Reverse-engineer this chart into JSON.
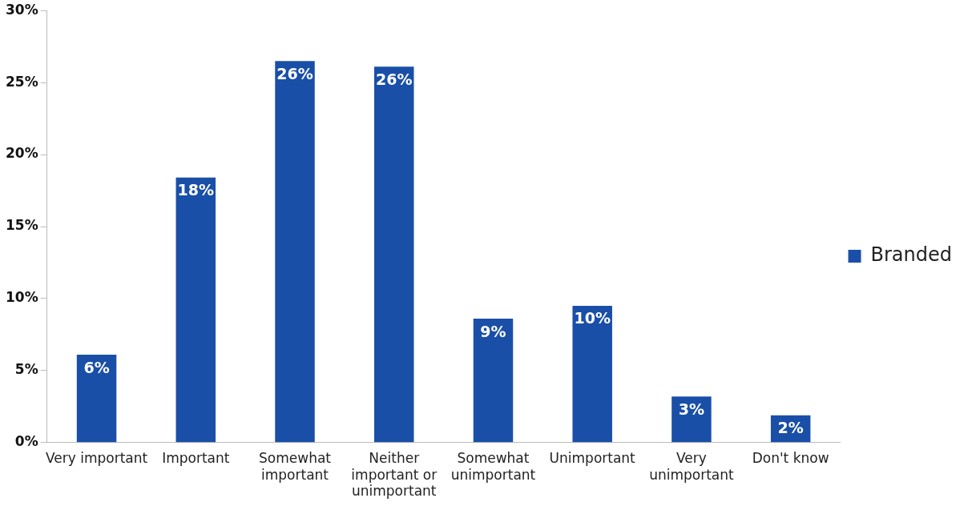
{
  "chart_data": {
    "type": "bar",
    "categories": [
      "Very important",
      "Important",
      "Somewhat important",
      "Neither important or unimportant",
      "Somewhat unimportant",
      "Unimportant",
      "Very unimportant",
      "Don't know"
    ],
    "series": [
      {
        "name": "Branded",
        "color": "#1a4fa8",
        "values": [
          6.1,
          18.4,
          26.5,
          26.1,
          8.6,
          9.5,
          3.2,
          1.9
        ],
        "value_labels": [
          "6%",
          "18%",
          "26%",
          "26%",
          "9%",
          "10%",
          "3%",
          "2%"
        ]
      }
    ],
    "ylim": [
      0,
      30
    ],
    "yticks": [
      {
        "value": 0,
        "label": "0%"
      },
      {
        "value": 5,
        "label": "5%"
      },
      {
        "value": 10,
        "label": "10%"
      },
      {
        "value": 15,
        "label": "15%"
      },
      {
        "value": 20,
        "label": "20%"
      },
      {
        "value": 25,
        "label": "25%"
      },
      {
        "value": 30,
        "label": "30%"
      }
    ],
    "legend": "right",
    "grid": false
  }
}
